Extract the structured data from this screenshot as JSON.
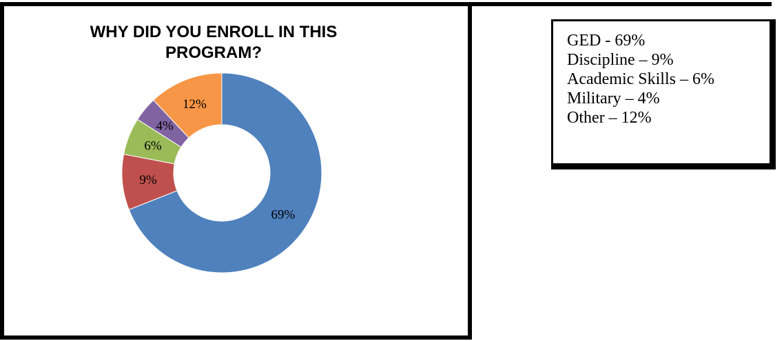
{
  "chart_data": {
    "type": "pie",
    "title": "WHY DID YOU ENROLL IN THIS PROGRAM?",
    "donut": true,
    "values": [
      69,
      9,
      6,
      4,
      12
    ],
    "data_labels": [
      "69%",
      "9%",
      "6%",
      "4%",
      "12%"
    ],
    "colors": [
      "#4F81BD",
      "#C0504D",
      "#9BBB59",
      "#8064A2",
      "#F79646"
    ],
    "legend_placement": "right"
  },
  "legend": {
    "lines": [
      "GED - 69%",
      "Discipline – 9%",
      "Academic Skills – 6%",
      "Military – 4%",
      "Other – 12%"
    ]
  }
}
